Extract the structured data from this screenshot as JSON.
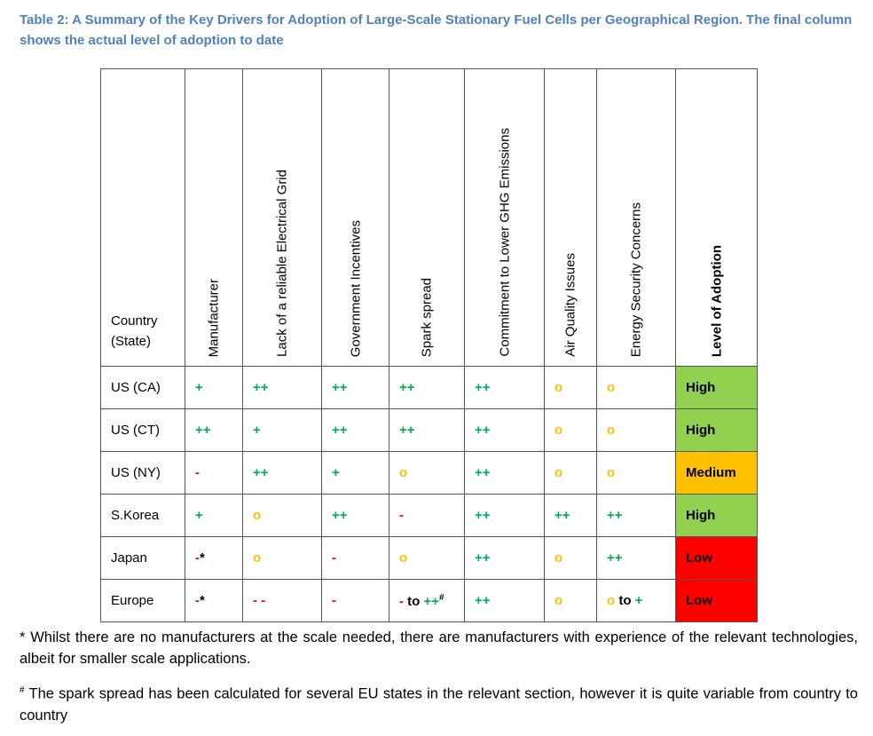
{
  "caption": "Table 2: A Summary of the Key Drivers for Adoption of Large-Scale Stationary Fuel Cells per Geographical Region. The final column shows the actual level of adoption to date",
  "colors": {
    "plus": "#00b050",
    "zero": "#ffc000",
    "minus": "#ff0000",
    "high": "#92d050",
    "medium": "#ffc000",
    "low": "#ff0000"
  },
  "headers": [
    "Country (State)",
    "Manufacturer",
    "Lack of a reliable Electrical Grid",
    "Government Incentives",
    "Spark spread",
    "Commitment to Lower GHG Emissions",
    "Air Quality Issues",
    "Energy Security Concerns",
    "Level of Adoption"
  ],
  "rows": [
    {
      "country": "US (CA)",
      "cells": [
        [
          [
            "+",
            "g"
          ]
        ],
        [
          [
            "++",
            "g"
          ]
        ],
        [
          [
            "++",
            "g"
          ]
        ],
        [
          [
            "++",
            "g"
          ]
        ],
        [
          [
            "++",
            "g"
          ]
        ],
        [
          [
            "o",
            "o"
          ]
        ],
        [
          [
            "o",
            "o"
          ]
        ]
      ],
      "level": "High",
      "level_color": "high"
    },
    {
      "country": "US (CT)",
      "cells": [
        [
          [
            "++",
            "g"
          ]
        ],
        [
          [
            "+",
            "g"
          ]
        ],
        [
          [
            "++",
            "g"
          ]
        ],
        [
          [
            "++",
            "g"
          ]
        ],
        [
          [
            "++",
            "g"
          ]
        ],
        [
          [
            "o",
            "o"
          ]
        ],
        [
          [
            "o",
            "o"
          ]
        ]
      ],
      "level": "High",
      "level_color": "high"
    },
    {
      "country": "US (NY)",
      "cells": [
        [
          [
            "-",
            "r"
          ]
        ],
        [
          [
            "++",
            "g"
          ]
        ],
        [
          [
            "+",
            "g"
          ]
        ],
        [
          [
            "o",
            "o"
          ]
        ],
        [
          [
            "++",
            "g"
          ]
        ],
        [
          [
            "o",
            "o"
          ]
        ],
        [
          [
            "o",
            "o"
          ]
        ]
      ],
      "level": "Medium",
      "level_color": "medium"
    },
    {
      "country": "S.Korea",
      "cells": [
        [
          [
            "+",
            "g"
          ]
        ],
        [
          [
            "o",
            "o"
          ]
        ],
        [
          [
            "++",
            "g"
          ]
        ],
        [
          [
            "-",
            "r"
          ]
        ],
        [
          [
            "++",
            "g"
          ]
        ],
        [
          [
            "++",
            "g"
          ]
        ],
        [
          [
            "++",
            "g"
          ]
        ]
      ],
      "level": "High",
      "level_color": "high"
    },
    {
      "country": "Japan",
      "cells": [
        [
          [
            "-",
            "r"
          ],
          [
            "*",
            "k"
          ]
        ],
        [
          [
            "o",
            "o"
          ]
        ],
        [
          [
            "-",
            "r"
          ]
        ],
        [
          [
            "o",
            "o"
          ]
        ],
        [
          [
            "++",
            "g"
          ]
        ],
        [
          [
            "o",
            "o"
          ]
        ],
        [
          [
            "++",
            "g"
          ]
        ]
      ],
      "level": "Low",
      "level_color": "low"
    },
    {
      "country": "Europe",
      "cells": [
        [
          [
            "-",
            "r"
          ],
          [
            "*",
            "k"
          ]
        ],
        [
          [
            "- -",
            "r"
          ]
        ],
        [
          [
            "-",
            "r"
          ]
        ],
        [
          [
            "- ",
            "r"
          ],
          [
            " to ",
            "k"
          ],
          [
            "++",
            "g"
          ],
          [
            "#",
            "sup"
          ]
        ],
        [
          [
            "++",
            "g"
          ]
        ],
        [
          [
            "o",
            "o"
          ]
        ],
        [
          [
            "o",
            "o"
          ],
          [
            " to ",
            "k"
          ],
          [
            "+",
            "g"
          ]
        ]
      ],
      "level": "Low",
      "level_color": "low"
    }
  ],
  "notes": [
    " * Whilst there are no manufacturers at the scale needed, there are manufacturers with experience of the relevant technologies, albeit for smaller scale applications.",
    "# The spark spread has been calculated for several EU states in the relevant section, however it is quite variable from country to country"
  ]
}
